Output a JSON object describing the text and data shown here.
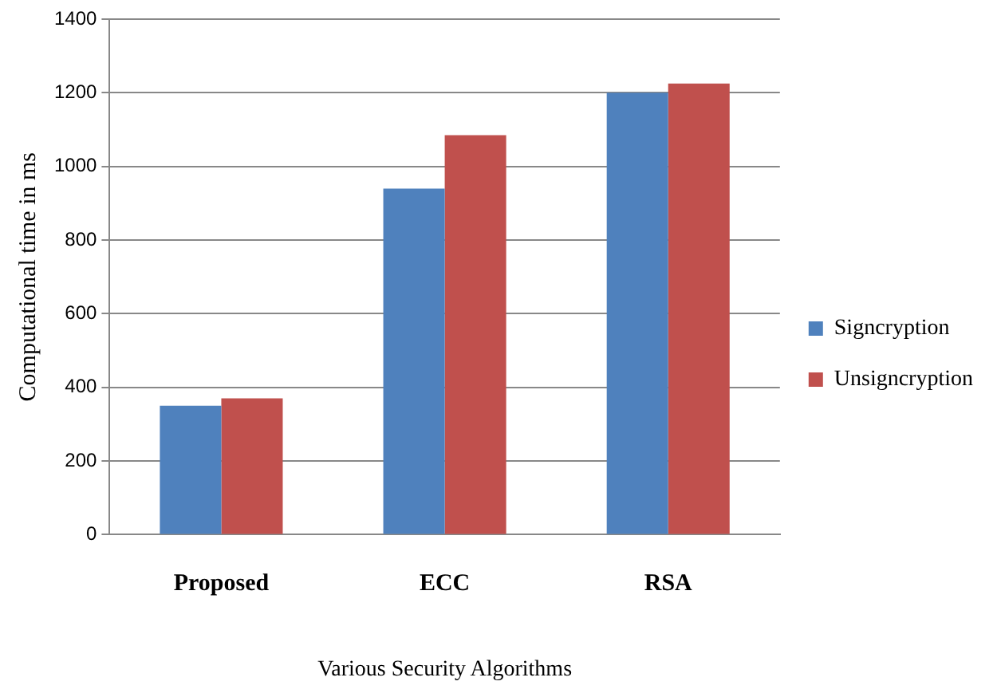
{
  "chart_data": {
    "type": "bar",
    "xlabel": "Various Security Algorithms",
    "ylabel": "Computational time in ms",
    "categories": [
      "Proposed",
      "ECC",
      "RSA"
    ],
    "series": [
      {
        "name": "Signcryption",
        "color": "#4f81bd",
        "values": [
          350,
          940,
          1200
        ]
      },
      {
        "name": "Unsigncryption",
        "color": "#c0504d",
        "values": [
          370,
          1085,
          1225
        ]
      }
    ],
    "ylim": [
      0,
      1400
    ],
    "yticks": [
      0,
      200,
      400,
      600,
      800,
      1000,
      1200,
      1400
    ],
    "grid": "y",
    "legend": "right"
  }
}
